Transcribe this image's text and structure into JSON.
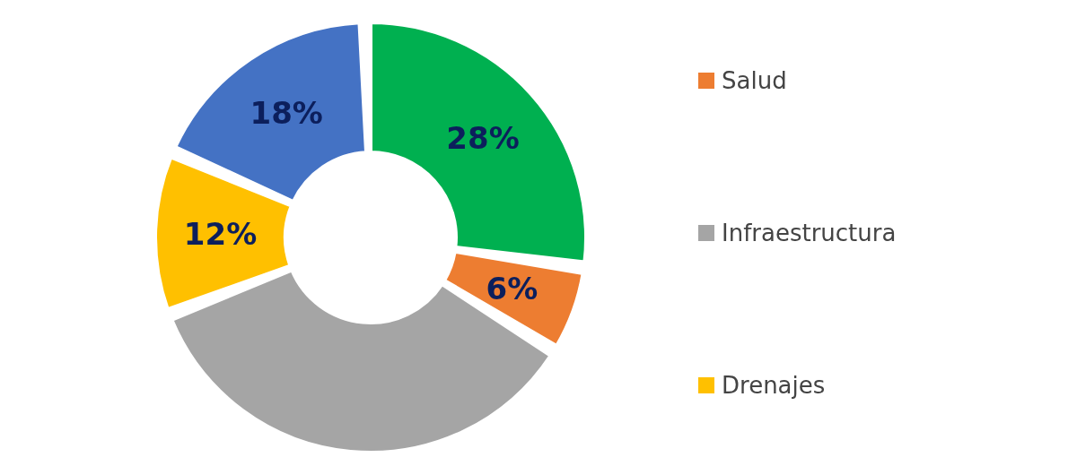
{
  "chart_data": {
    "type": "donut",
    "categories": [
      null,
      "Salud",
      "Infraestructura",
      "Drenajes",
      null
    ],
    "values": [
      28,
      6,
      36,
      12,
      18
    ],
    "colors": [
      "#00b050",
      "#ed7d31",
      "#a5a5a5",
      "#ffc000",
      "#4472c4"
    ],
    "value_labels": [
      "28%",
      "6%",
      null,
      "12%",
      "18%"
    ],
    "legend": "right"
  }
}
